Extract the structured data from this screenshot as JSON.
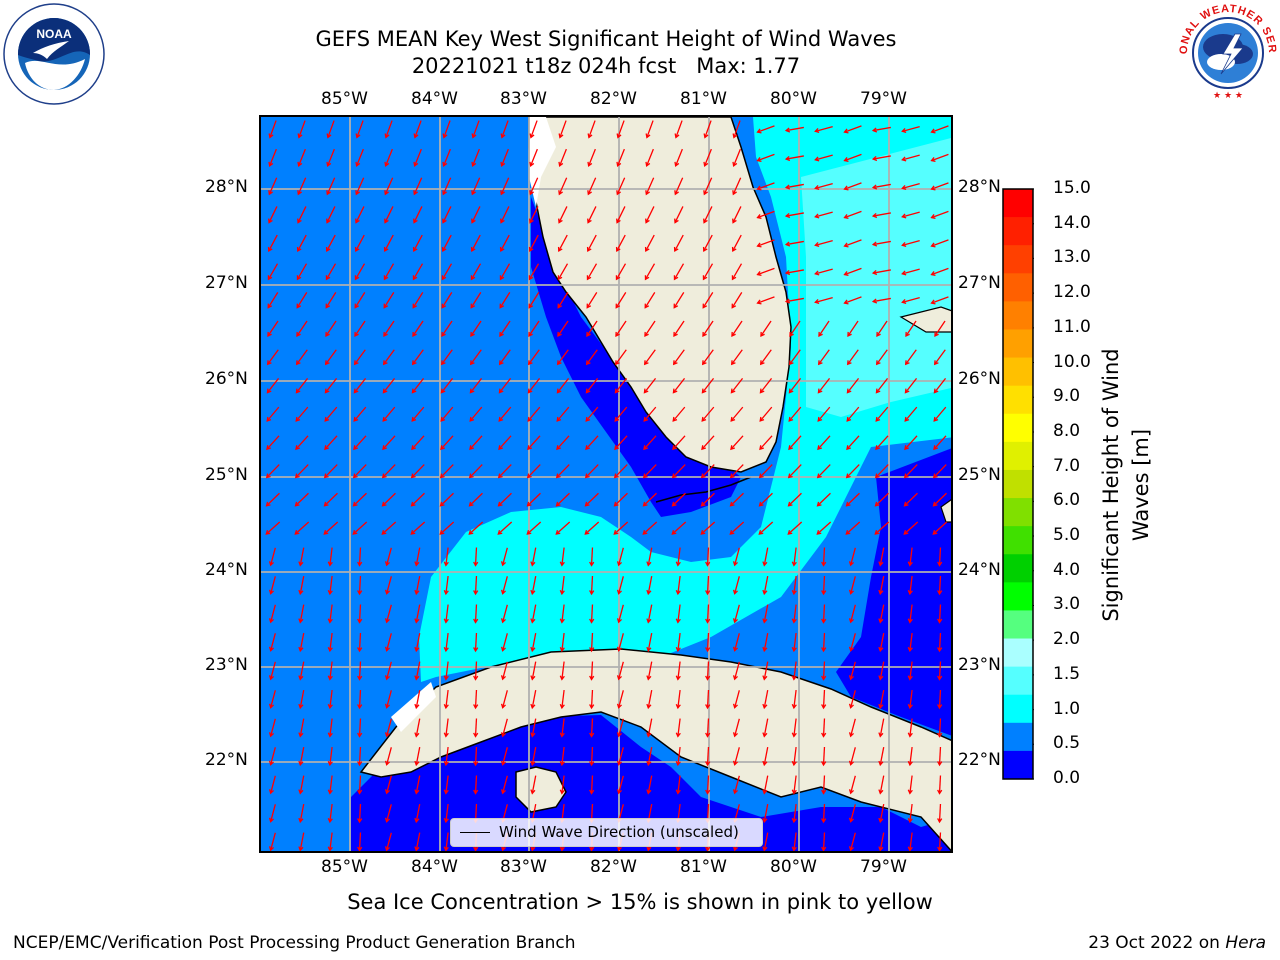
{
  "title": {
    "line1": "GEFS MEAN Key West Significant Height of Wind Waves",
    "line2": "20221021 t18z 024h fcst   Max: 1.77"
  },
  "logos": {
    "noaa_text": "NOAA",
    "noaa_ring": "NATIONAL OCEANIC AND ATMOSPHERIC ADMINISTRATION · U.S. DEPARTMENT OF COMMERCE",
    "nws_ring": "NATIONAL WEATHER SERVICE"
  },
  "map": {
    "lon_labels": [
      "85°W",
      "84°W",
      "83°W",
      "82°W",
      "81°W",
      "80°W",
      "79°W"
    ],
    "lat_labels": [
      "28°N",
      "27°N",
      "26°N",
      "25°N",
      "24°N",
      "23°N",
      "22°N"
    ],
    "legend_label": "Wind Wave Direction (unscaled)",
    "arrow_color": "#ff0000",
    "land_color": "#efeddc",
    "wave_field": [
      {
        "level": "0.0-0.5 m",
        "color": "#0000ff"
      },
      {
        "level": "0.5-1.0 m",
        "color": "#0080ff"
      },
      {
        "level": "1.0-1.5 m",
        "color": "#00ffff"
      },
      {
        "level": "1.5-2.0 m",
        "color": "#55ffff"
      }
    ]
  },
  "colorbar": {
    "label": "Significant Height of Wind Waves [m]",
    "label_line1": "Significant Height of Wind",
    "label_line2": "Waves [m]",
    "ticks": [
      "15.0",
      "14.0",
      "13.0",
      "12.0",
      "11.0",
      "10.0",
      "9.0",
      "8.0",
      "7.0",
      "6.0",
      "5.0",
      "4.0",
      "3.0",
      "2.0",
      "1.5",
      "1.0",
      "0.5",
      "0.0"
    ],
    "colors": [
      "#ff0000",
      "#ff2000",
      "#ff4000",
      "#ff6000",
      "#ff8000",
      "#ffa000",
      "#ffc000",
      "#ffe000",
      "#ffff00",
      "#e0f000",
      "#c0e000",
      "#80e000",
      "#40e000",
      "#00d000",
      "#00ff00",
      "#55ff7f",
      "#aaffff",
      "#55ffff",
      "#00ffff",
      "#0080ff",
      "#0000ff"
    ]
  },
  "footer": {
    "note": "Sea Ice Concentration > 15% is shown in pink to yellow",
    "credit": "NCEP/EMC/Verification Post Processing Product Generation Branch",
    "date": "23 Oct 2022 on ",
    "machine": "Hera"
  }
}
